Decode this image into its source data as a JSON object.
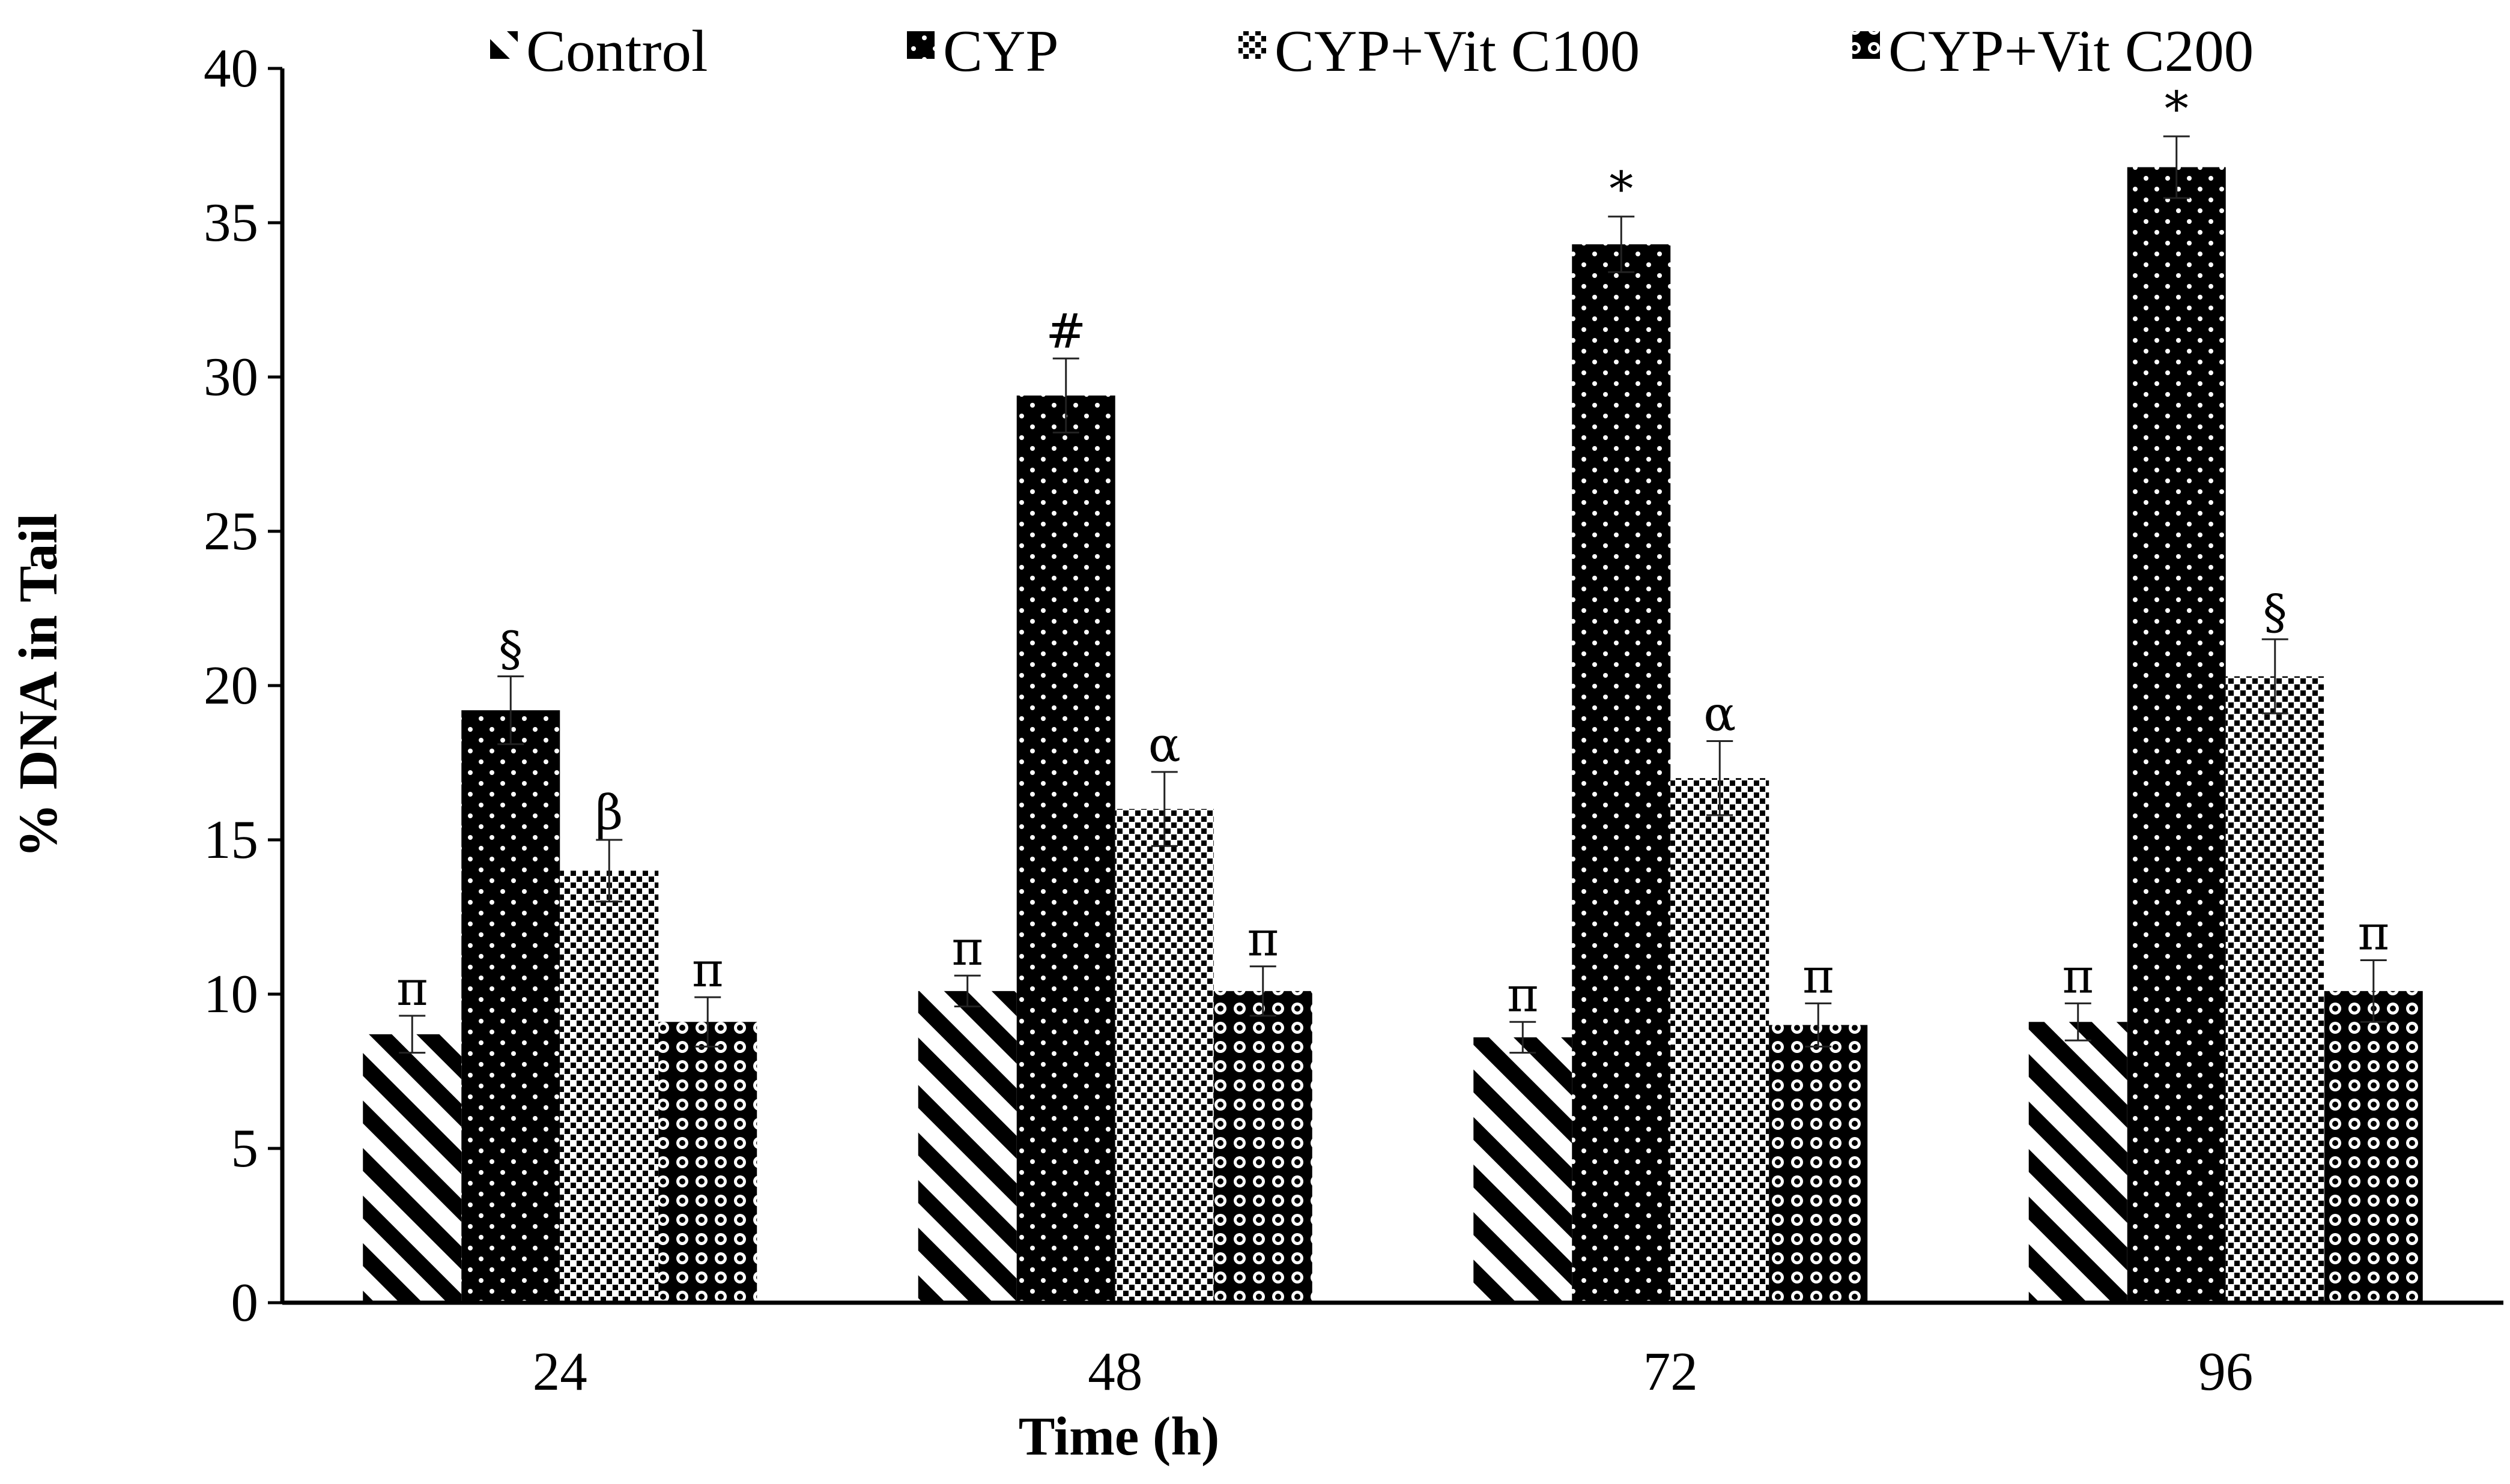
{
  "chart_data": {
    "type": "bar",
    "title": "",
    "xlabel": "Time (h)",
    "ylabel": "% DNA in Tail",
    "ylim": [
      0,
      40
    ],
    "yticks": [
      "0",
      "5",
      "10",
      "15",
      "20",
      "25",
      "30",
      "35",
      "40"
    ],
    "categories": [
      "24",
      "48",
      "72",
      "96"
    ],
    "legend_position": "top",
    "grid": false,
    "series": [
      {
        "name": "Control",
        "pattern": "diagonal-stripes",
        "values": [
          8.7,
          10.1,
          8.6,
          9.1
        ],
        "errors": [
          0.6,
          0.5,
          0.5,
          0.6
        ],
        "labels": [
          "π",
          "π",
          "π",
          "π"
        ]
      },
      {
        "name": "CYP",
        "pattern": "dotted-black",
        "values": [
          19.2,
          29.4,
          34.3,
          36.8
        ],
        "errors": [
          1.1,
          1.2,
          0.9,
          1.0
        ],
        "labels": [
          "§",
          "#",
          "*",
          "*"
        ]
      },
      {
        "name": "CYP+Vit C100",
        "pattern": "checker-light",
        "values": [
          14.0,
          16.0,
          17.0,
          20.3
        ],
        "errors": [
          1.0,
          1.2,
          1.2,
          1.2
        ],
        "labels": [
          "β",
          "α",
          "α",
          "§"
        ]
      },
      {
        "name": "CYP+Vit C200",
        "pattern": "circles-dark",
        "values": [
          9.1,
          10.1,
          9.0,
          10.1
        ],
        "errors": [
          0.8,
          0.8,
          0.7,
          1.0
        ],
        "labels": [
          "π",
          "π",
          "π",
          "π"
        ]
      }
    ]
  }
}
